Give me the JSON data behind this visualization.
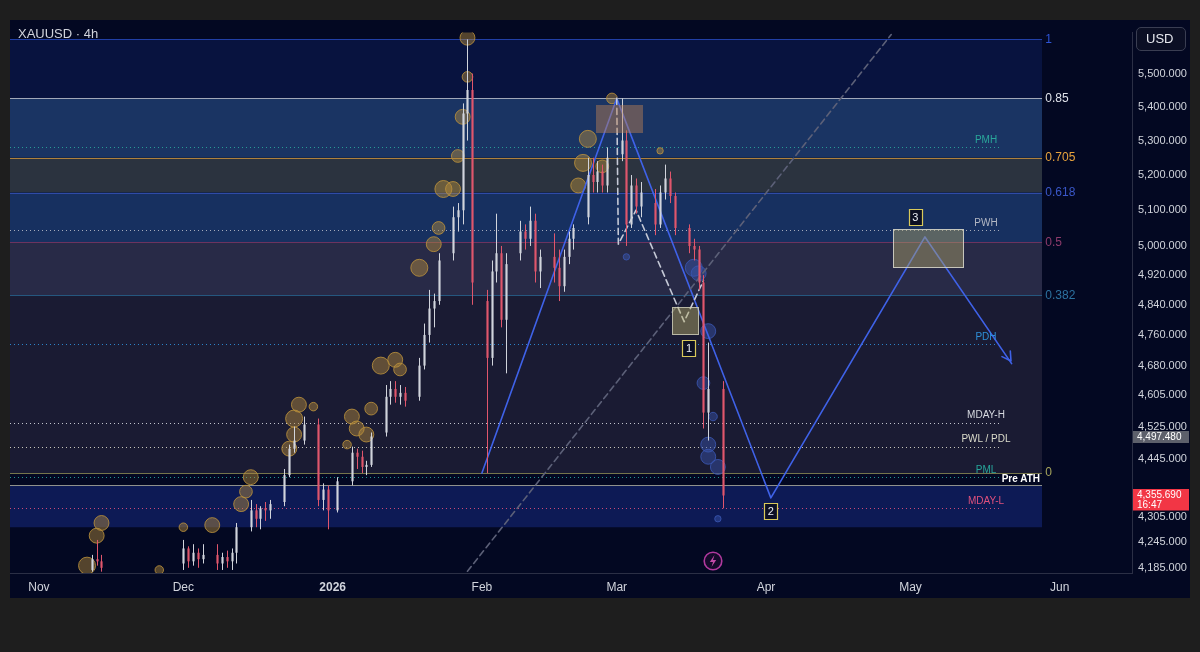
{
  "chart_data": {
    "type": "candlestick",
    "title": "XAUUSD · 4h",
    "ylabel": "USD",
    "log": "y",
    "xlim": [
      "2025-10-26",
      "2026-06-16"
    ],
    "xticks": [
      {
        "value": "2025-11-01",
        "label": "Nov"
      },
      {
        "value": "2025-12-01",
        "label": "Dec"
      },
      {
        "value": "2026-01-01",
        "label": "2026"
      },
      {
        "value": "2026-02-01",
        "label": "Feb"
      },
      {
        "value": "2026-03-01",
        "label": "Mar"
      },
      {
        "value": "2026-04-01",
        "label": "Apr"
      },
      {
        "value": "2026-05-01",
        "label": "May"
      },
      {
        "value": "2026-06-01",
        "label": "Jun"
      }
    ],
    "ylim": [
      4173,
      5626
    ],
    "yticks": [
      {
        "value": 5500,
        "label": "5,500.000"
      },
      {
        "value": 5400,
        "label": "5,400.000"
      },
      {
        "value": 5300,
        "label": "5,300.000"
      },
      {
        "value": 5200,
        "label": "5,200.000"
      },
      {
        "value": 5100,
        "label": "5,100.000"
      },
      {
        "value": 5000,
        "label": "5,000.000"
      },
      {
        "value": 4920,
        "label": "4,920.000"
      },
      {
        "value": 4840,
        "label": "4,840.000"
      },
      {
        "value": 4760,
        "label": "4,760.000"
      },
      {
        "value": 4680,
        "label": "4,680.000"
      },
      {
        "value": 4605,
        "label": "4,605.000"
      },
      {
        "value": 4525,
        "label": "4,525.000"
      },
      {
        "value": 4445,
        "label": "4,445.000"
      },
      {
        "value": 4305,
        "label": "4,305.000"
      },
      {
        "value": 4245,
        "label": "4,245.000"
      },
      {
        "value": 4185,
        "label": "4,185.000"
      }
    ],
    "series": [
      {
        "x": [
          "2025-11-12",
          "2025-11-13",
          "2025-11-14",
          "2025-12-01",
          "2025-12-02",
          "2025-12-03",
          "2025-12-04",
          "2025-12-05",
          "2025-12-08",
          "2025-12-09",
          "2025-12-10",
          "2025-12-11",
          "2025-12-12",
          "2025-12-15",
          "2025-12-16",
          "2025-12-17",
          "2025-12-18",
          "2025-12-19",
          "2025-12-22",
          "2025-12-23",
          "2025-12-24",
          "2025-12-26",
          "2025-12-29",
          "2025-12-30",
          "2025-12-31",
          "2026-01-02",
          "2026-01-05",
          "2026-01-06",
          "2026-01-07",
          "2026-01-08",
          "2026-01-09",
          "2026-01-12",
          "2026-01-13",
          "2026-01-14",
          "2026-01-15",
          "2026-01-16",
          "2026-01-19",
          "2026-01-20",
          "2026-01-21",
          "2026-01-22",
          "2026-01-23",
          "2026-01-26",
          "2026-01-27",
          "2026-01-28",
          "2026-01-29",
          "2026-01-30",
          "2026-02-02",
          "2026-02-03",
          "2026-02-04",
          "2026-02-05",
          "2026-02-06",
          "2026-02-09",
          "2026-02-10",
          "2026-02-11",
          "2026-02-12",
          "2026-02-13",
          "2026-02-16",
          "2026-02-17",
          "2026-02-18",
          "2026-02-19",
          "2026-02-20",
          "2026-02-23",
          "2026-02-24",
          "2026-02-25",
          "2026-02-26",
          "2026-02-27",
          "2026-03-02",
          "2026-03-03",
          "2026-03-04",
          "2026-03-05",
          "2026-03-06",
          "2026-03-09",
          "2026-03-10",
          "2026-03-11",
          "2026-03-12",
          "2026-03-13",
          "2026-03-16",
          "2026-03-17",
          "2026-03-18",
          "2026-03-19",
          "2026-03-20",
          "2026-03-23"
        ],
        "ohlc": [
          [
            4180,
            4215,
            4176,
            4205
          ],
          [
            4205,
            4250,
            4190,
            4200
          ],
          [
            4200,
            4215,
            4176,
            4185
          ],
          [
            4195,
            4250,
            4180,
            4230
          ],
          [
            4230,
            4235,
            4185,
            4200
          ],
          [
            4200,
            4240,
            4190,
            4220
          ],
          [
            4220,
            4230,
            4185,
            4205
          ],
          [
            4205,
            4240,
            4195,
            4215
          ],
          [
            4215,
            4240,
            4180,
            4195
          ],
          [
            4195,
            4220,
            4180,
            4210
          ],
          [
            4210,
            4225,
            4185,
            4200
          ],
          [
            4200,
            4230,
            4180,
            4220
          ],
          [
            4220,
            4290,
            4195,
            4280
          ],
          [
            4280,
            4345,
            4270,
            4320
          ],
          [
            4320,
            4335,
            4280,
            4300
          ],
          [
            4300,
            4330,
            4275,
            4325
          ],
          [
            4325,
            4340,
            4295,
            4320
          ],
          [
            4320,
            4345,
            4300,
            4335
          ],
          [
            4340,
            4420,
            4330,
            4405
          ],
          [
            4405,
            4480,
            4400,
            4470
          ],
          [
            4470,
            4525,
            4460,
            4490
          ],
          [
            4490,
            4550,
            4480,
            4530
          ],
          [
            4530,
            4545,
            4330,
            4345
          ],
          [
            4345,
            4385,
            4320,
            4370
          ],
          [
            4370,
            4380,
            4275,
            4320
          ],
          [
            4320,
            4400,
            4315,
            4390
          ],
          [
            4390,
            4475,
            4380,
            4460
          ],
          [
            4460,
            4470,
            4420,
            4450
          ],
          [
            4450,
            4465,
            4410,
            4425
          ],
          [
            4425,
            4440,
            4405,
            4430
          ],
          [
            4430,
            4510,
            4425,
            4500
          ],
          [
            4510,
            4630,
            4500,
            4600
          ],
          [
            4600,
            4640,
            4580,
            4620
          ],
          [
            4620,
            4640,
            4585,
            4600
          ],
          [
            4600,
            4630,
            4580,
            4610
          ],
          [
            4610,
            4625,
            4575,
            4590
          ],
          [
            4600,
            4700,
            4590,
            4680
          ],
          [
            4680,
            4790,
            4670,
            4760
          ],
          [
            4760,
            4880,
            4740,
            4830
          ],
          [
            4830,
            4870,
            4780,
            4850
          ],
          [
            4850,
            4980,
            4840,
            4960
          ],
          [
            4980,
            5110,
            4960,
            5080
          ],
          [
            5080,
            5120,
            5040,
            5100
          ],
          [
            5100,
            5410,
            5060,
            5380
          ],
          [
            5380,
            5605,
            5300,
            5450
          ],
          [
            5450,
            5500,
            4840,
            4900
          ],
          [
            4850,
            4880,
            4410,
            4700
          ],
          [
            4700,
            4960,
            4680,
            4930
          ],
          [
            4930,
            5090,
            4900,
            4980
          ],
          [
            4980,
            5000,
            4780,
            4800
          ],
          [
            4800,
            4980,
            4660,
            4950
          ],
          [
            4980,
            5070,
            4960,
            5040
          ],
          [
            5040,
            5060,
            4990,
            5020
          ],
          [
            5020,
            5110,
            5000,
            5070
          ],
          [
            5070,
            5090,
            4900,
            4930
          ],
          [
            4930,
            4990,
            4885,
            4970
          ],
          [
            4970,
            5035,
            4900,
            4940
          ],
          [
            4940,
            4990,
            4850,
            4890
          ],
          [
            4890,
            4990,
            4875,
            4970
          ],
          [
            4970,
            5040,
            4950,
            5020
          ],
          [
            5020,
            5060,
            4990,
            5050
          ],
          [
            5080,
            5250,
            5060,
            5200
          ],
          [
            5200,
            5250,
            5150,
            5180
          ],
          [
            5180,
            5240,
            5150,
            5210
          ],
          [
            5210,
            5230,
            5150,
            5170
          ],
          [
            5170,
            5280,
            5150,
            5250
          ],
          [
            5260,
            5425,
            5240,
            5300
          ],
          [
            5300,
            5330,
            5000,
            5060
          ],
          [
            5060,
            5200,
            5050,
            5170
          ],
          [
            5170,
            5190,
            5090,
            5110
          ],
          [
            5110,
            5180,
            5080,
            5150
          ],
          [
            5120,
            5160,
            5030,
            5060
          ],
          [
            5060,
            5170,
            5050,
            5150
          ],
          [
            5150,
            5230,
            5130,
            5190
          ],
          [
            5190,
            5210,
            5120,
            5140
          ],
          [
            5140,
            5150,
            5030,
            5050
          ],
          [
            5050,
            5060,
            4980,
            5000
          ],
          [
            5000,
            5020,
            4960,
            4990
          ],
          [
            4990,
            5000,
            4880,
            4900
          ],
          [
            4900,
            4920,
            4520,
            4560
          ],
          [
            4560,
            4740,
            4490,
            4620
          ],
          [
            4620,
            4640,
            4325,
            4355.69
          ]
        ],
        "colors": [
          "#d1d4dc",
          "#e0566c",
          "#e0566c",
          "#d1d4dc",
          "#e0566c",
          "#d1d4dc",
          "#e0566c",
          "#d1d4dc",
          "#e0566c",
          "#d1d4dc",
          "#e0566c",
          "#d1d4dc",
          "#d1d4dc",
          "#d1d4dc",
          "#e0566c",
          "#d1d4dc",
          "#e0566c",
          "#d1d4dc",
          "#d1d4dc",
          "#d1d4dc",
          "#d1d4dc",
          "#d1d4dc",
          "#e0566c",
          "#d1d4dc",
          "#e0566c",
          "#d1d4dc",
          "#d1d4dc",
          "#e0566c",
          "#e0566c",
          "#d1d4dc",
          "#d1d4dc",
          "#d1d4dc",
          "#d1d4dc",
          "#e0566c",
          "#d1d4dc",
          "#e0566c",
          "#d1d4dc",
          "#d1d4dc",
          "#d1d4dc",
          "#d1d4dc",
          "#d1d4dc",
          "#d1d4dc",
          "#d1d4dc",
          "#d1d4dc",
          "#d1d4dc",
          "#e0566c",
          "#e0566c",
          "#d1d4dc",
          "#d1d4dc",
          "#e0566c",
          "#d1d4dc",
          "#d1d4dc",
          "#e0566c",
          "#d1d4dc",
          "#e0566c",
          "#d1d4dc",
          "#e0566c",
          "#e0566c",
          "#d1d4dc",
          "#d1d4dc",
          "#d1d4dc",
          "#d1d4dc",
          "#e0566c",
          "#d1d4dc",
          "#e0566c",
          "#d1d4dc",
          "#d1d4dc",
          "#e0566c",
          "#d1d4dc",
          "#e0566c",
          "#d1d4dc",
          "#e0566c",
          "#d1d4dc",
          "#d1d4dc",
          "#e0566c",
          "#e0566c",
          "#e0566c",
          "#e0566c",
          "#e0566c",
          "#e0566c",
          "#d1d4dc",
          "#e0566c"
        ]
      },
      {
        "type": "line",
        "color": "#5c6078",
        "line_style": "dashed",
        "x": [
          "2026-01-29",
          "2026-04-27"
        ],
        "values": [
          4177,
          5620
        ]
      },
      {
        "type": "line",
        "color": "#c5c9d6",
        "line_style": "dashed",
        "x": [
          "2026-03-01T00:00",
          "2026-03-01T08:00",
          "2026-03-05",
          "2026-03-15",
          "2026-03-19"
        ],
        "values": [
          5425,
          5005,
          5100,
          4795,
          4905
        ]
      },
      {
        "type": "line",
        "color": "#3f62e8",
        "x": [
          "2026-02-01",
          "2026-03-01",
          "2026-04-02",
          "2026-05-04",
          "2026-05-22"
        ],
        "values": [
          4410,
          5425,
          4350,
          5025,
          4685
        ]
      },
      {
        "type": "bubble",
        "color": "#b88f3c",
        "x": [
          "2025-11-11",
          "2025-11-13",
          "2025-11-14",
          "2025-11-26",
          "2025-12-01",
          "2025-12-07",
          "2025-12-13",
          "2025-12-14",
          "2025-12-15",
          "2025-12-23",
          "2025-12-24",
          "2025-12-24",
          "2025-12-25",
          "2025-12-28",
          "2026-01-04",
          "2026-01-05",
          "2026-01-06",
          "2026-01-08",
          "2026-01-09",
          "2026-01-11",
          "2026-01-14",
          "2026-01-15",
          "2026-01-19",
          "2026-01-22",
          "2026-01-23",
          "2026-01-24",
          "2026-01-26",
          "2026-01-27",
          "2026-01-28",
          "2026-01-29",
          "2026-01-29",
          "2026-02-21",
          "2026-02-22",
          "2026-02-23",
          "2026-02-26",
          "2026-02-28",
          "2026-03-10"
        ],
        "values": [
          4190,
          4260,
          4290,
          4180,
          4280,
          4285,
          4335,
          4365,
          4400,
          4470,
          4505,
          4545,
          4580,
          4575,
          4480,
          4550,
          4520,
          4505,
          4570,
          4680,
          4695,
          4670,
          4940,
          5005,
          5050,
          5160,
          5160,
          5255,
          5370,
          5490,
          5610,
          5170,
          5235,
          5305,
          5225,
          5425,
          5270
        ],
        "sizes": [
          1,
          0.77,
          0.77,
          0.25,
          0.25,
          0.77,
          0.77,
          0.56,
          0.77,
          0.77,
          0.77,
          1,
          0.77,
          0.25,
          0.25,
          0.77,
          0.77,
          0.77,
          0.56,
          1,
          0.77,
          0.56,
          1,
          0.77,
          0.56,
          1,
          0.77,
          0.56,
          0.77,
          0.39,
          0.77,
          0.77,
          1,
          1,
          0.56,
          0.39,
          0.14
        ]
      },
      {
        "type": "bubble",
        "color": "#3a56b0",
        "x": [
          "2026-03-03",
          "2026-03-17",
          "2026-03-18",
          "2026-03-19",
          "2026-03-20",
          "2026-03-20",
          "2026-03-20",
          "2026-03-21",
          "2026-03-22",
          "2026-03-22"
        ],
        "values": [
          4970,
          4940,
          4925,
          4635,
          4770,
          4480,
          4450,
          4550,
          4425,
          4300
        ],
        "sizes": [
          0.14,
          1,
          0.77,
          0.56,
          0.77,
          0.77,
          0.77,
          0.25,
          0.77,
          0.14
        ]
      }
    ],
    "bands": [
      {
        "axis": "y",
        "from": 5425,
        "to": 5605,
        "color": "#08133f"
      },
      {
        "axis": "y",
        "from": 5250,
        "to": 5425,
        "color": "#1a3463"
      },
      {
        "axis": "y",
        "from": 5150,
        "to": 5250,
        "color": "#2b333f"
      },
      {
        "axis": "y",
        "from": 5010,
        "to": 5150,
        "color": "#173060"
      },
      {
        "axis": "y",
        "from": 4865,
        "to": 5010,
        "color": "#282a47"
      },
      {
        "axis": "y",
        "from": 4410,
        "to": 4865,
        "color": "#1a1b33"
      },
      {
        "axis": "y",
        "from": 4280,
        "to": 4380,
        "label": "Pre ATH",
        "color": "#0d1a55"
      }
    ],
    "ref_lines": [
      {
        "axis": "y",
        "value": 5605,
        "color": "#2e54d6"
      },
      {
        "axis": "y",
        "value": 5425,
        "color": "#dfe2ea"
      },
      {
        "axis": "y",
        "value": 5250,
        "color": "#e8a33d"
      },
      {
        "axis": "y",
        "value": 5150,
        "color": "#3a57c8"
      },
      {
        "axis": "y",
        "value": 5010,
        "color": "#8e3b6c"
      },
      {
        "axis": "y",
        "value": 4865,
        "color": "#2c72a0"
      },
      {
        "axis": "y",
        "value": 4410,
        "color": "#a6a45c"
      },
      {
        "axis": "y",
        "value": 4380,
        "color": "#c9c7ae"
      },
      {
        "axis": "y",
        "value": 5280,
        "label": "PMH",
        "color": "#2aa79b",
        "line_style": "dotted"
      },
      {
        "axis": "y",
        "value": 5045,
        "label": "PWH",
        "color": "#b4b8c4",
        "line_style": "dotted"
      },
      {
        "axis": "y",
        "value": 4735,
        "label": "PDH",
        "color": "#2f8fd8",
        "line_style": "dotted"
      },
      {
        "axis": "y",
        "value": 4535,
        "label": "MDAY-H",
        "color": "#d6d9e0",
        "line_style": "dotted"
      },
      {
        "axis": "y",
        "value": 4475,
        "label": "PWL / PDL",
        "color": "#dcdccb",
        "line_style": "dotted"
      },
      {
        "axis": "y",
        "value": 4400,
        "label": "PML",
        "color": "#26a69a",
        "line_style": "dotted"
      },
      {
        "axis": "y",
        "value": 4325,
        "label": "MDAY-L",
        "color": "#e0507c",
        "line_style": "dotted"
      }
    ],
    "annotations": [
      {
        "text": "1",
        "x": "2026-05-29",
        "y": 5605
      },
      {
        "text": "0.85",
        "x": "2026-05-29",
        "y": 5425
      },
      {
        "text": "0.705",
        "x": "2026-05-29",
        "y": 5250
      },
      {
        "text": "0.618",
        "x": "2026-05-29",
        "y": 5150
      },
      {
        "text": "0.5",
        "x": "2026-05-29",
        "y": 5010
      },
      {
        "text": "0.382",
        "x": "2026-05-29",
        "y": 4865
      },
      {
        "text": "0",
        "x": "2026-05-29",
        "y": 4410
      },
      {
        "text": "1",
        "x": "2026-03-16",
        "y": 4725
      },
      {
        "text": "2",
        "x": "2026-04-02",
        "y": 4318
      },
      {
        "text": "3",
        "x": "2026-05-02",
        "y": 5080
      },
      "4,497.480",
      "4,355.690\n16:47"
    ]
  }
}
